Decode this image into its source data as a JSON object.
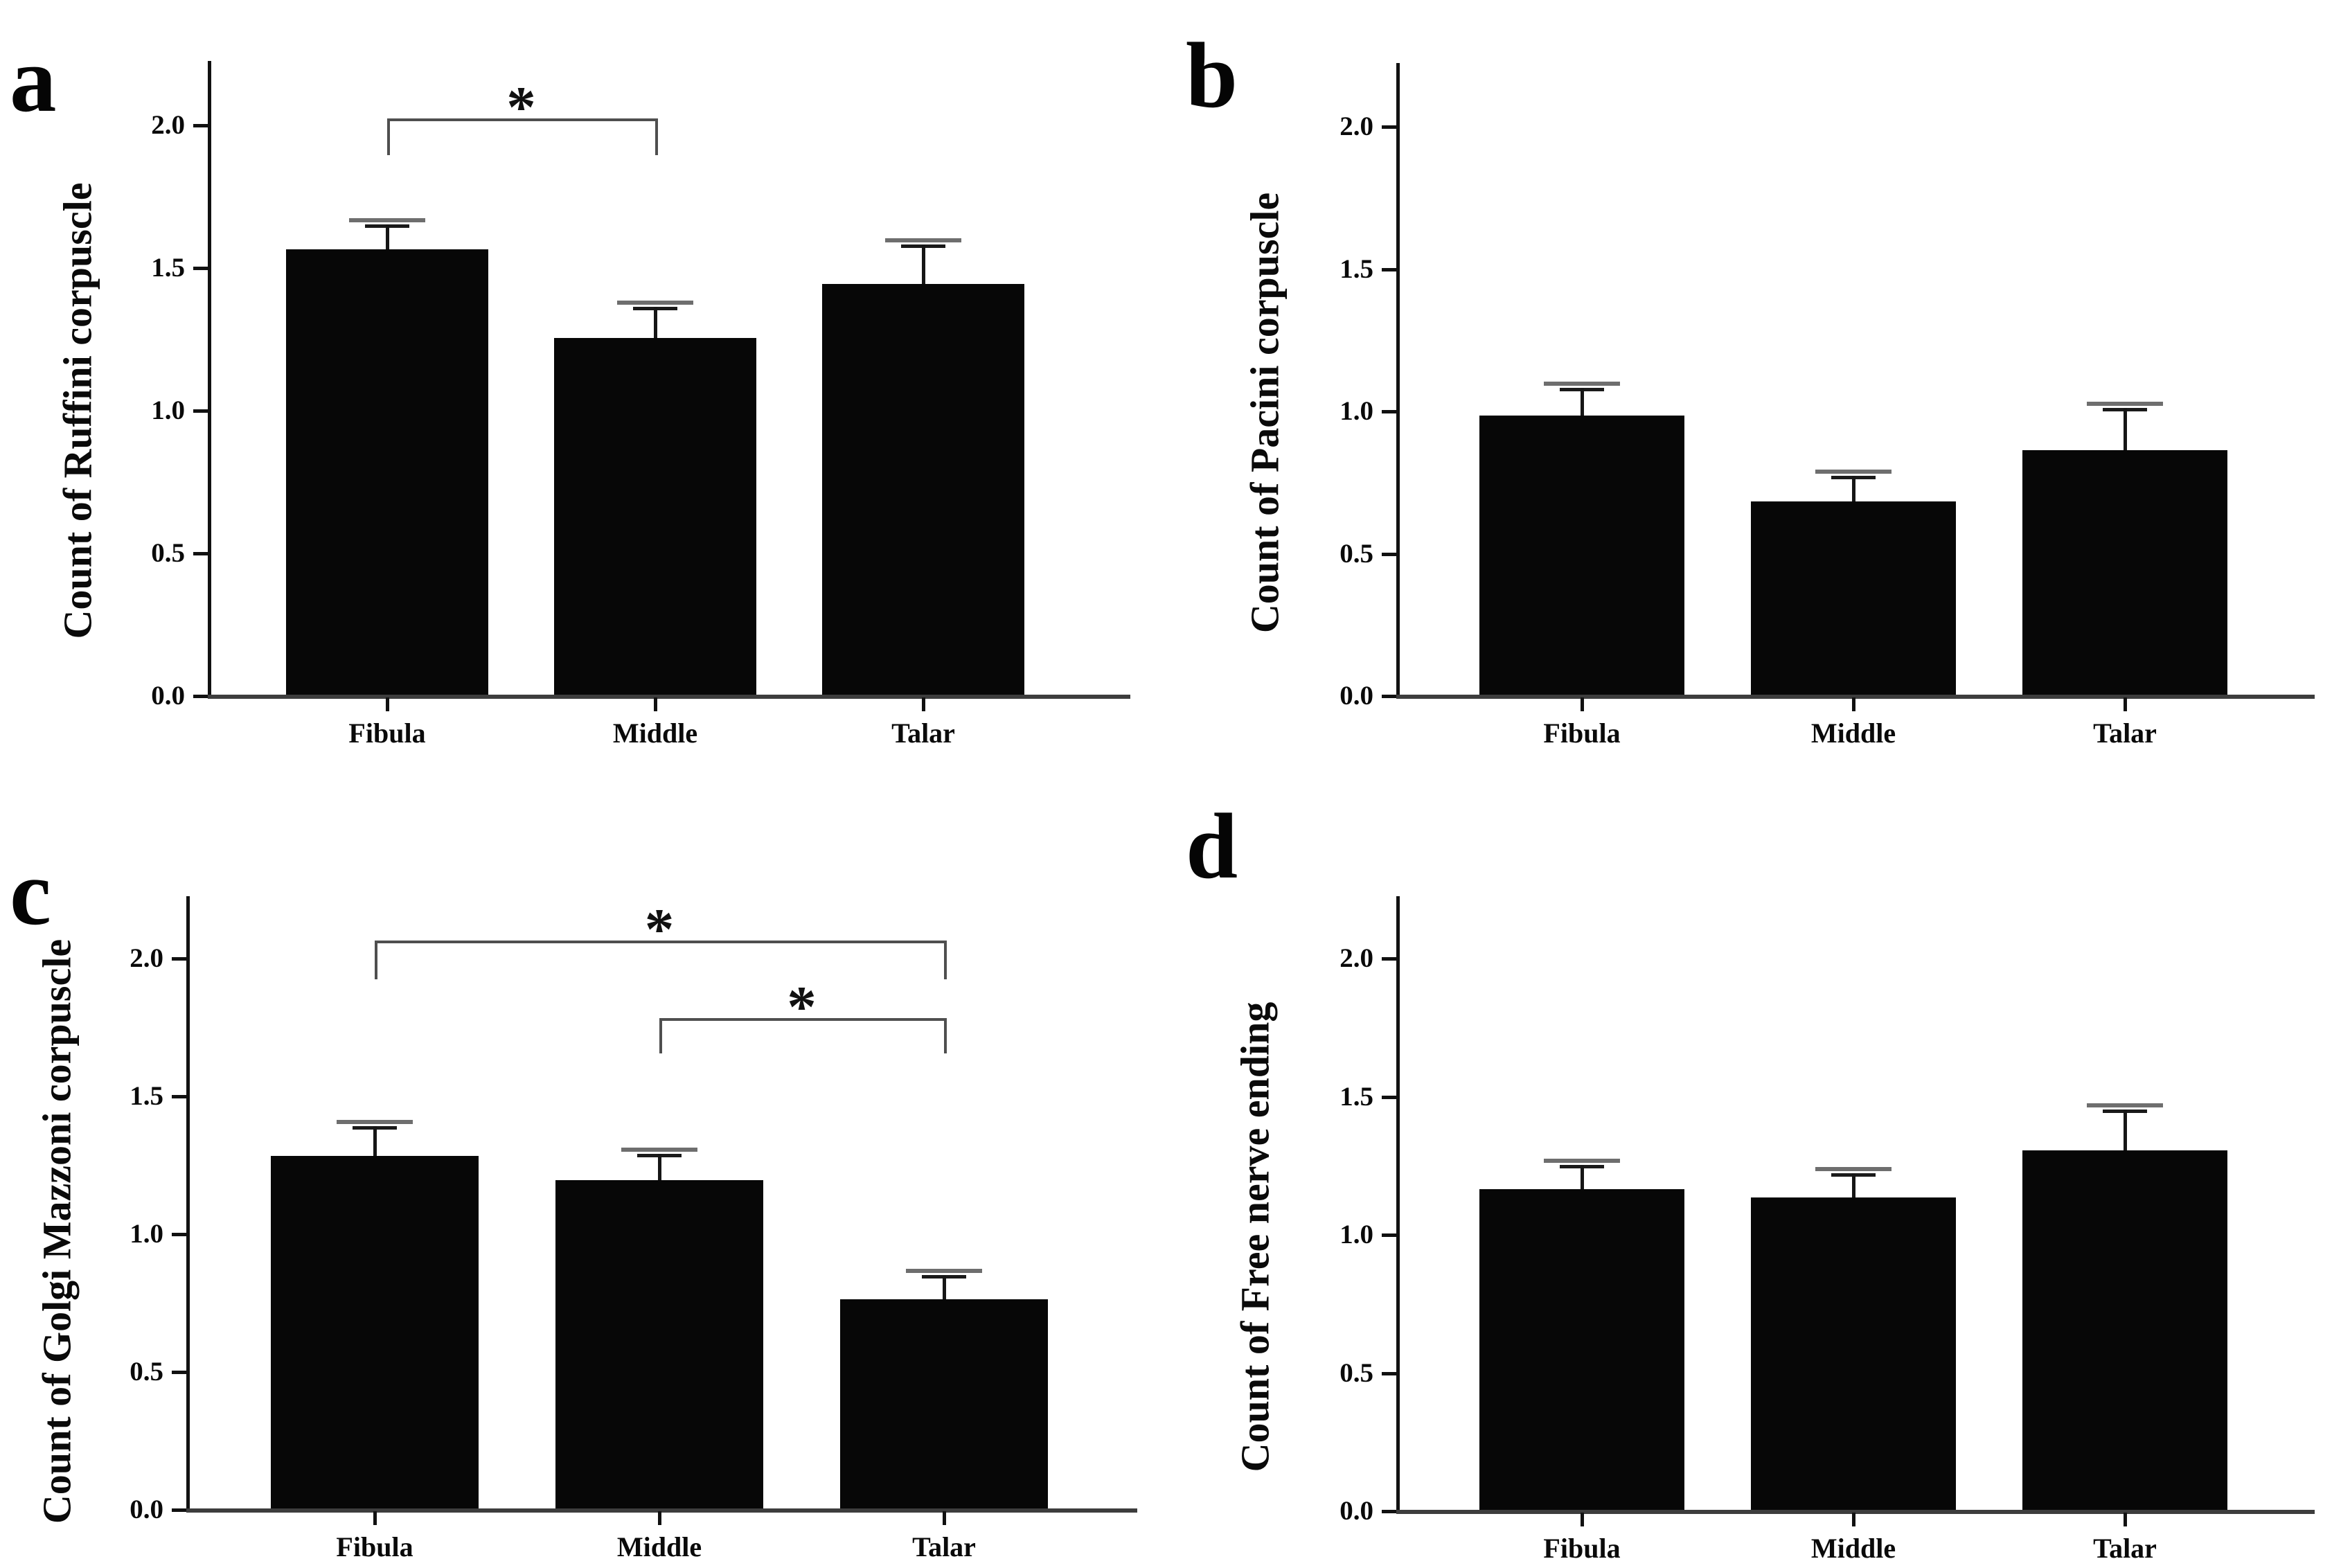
{
  "chart_data": [
    {
      "type": "bar",
      "panel_label": "a",
      "ylabel": "Count of Ruffini corpuscle",
      "xlabel": "",
      "categories": [
        "Fibula",
        "Middle",
        "Talar"
      ],
      "values": [
        1.56,
        1.25,
        1.44
      ],
      "errors_upper": [
        0.11,
        0.13,
        0.16
      ],
      "ylim": [
        0,
        2.22
      ],
      "yticks": [
        "0.0",
        "0.5",
        "1.0",
        "1.5",
        "2.0"
      ],
      "bar_color": "#070707",
      "grid": "off",
      "legend": "none",
      "significance_brackets": [
        {
          "from": "Fibula",
          "to": "Middle",
          "height": 2.02,
          "leg_drop": 0.13,
          "label": "*"
        }
      ]
    },
    {
      "type": "bar",
      "panel_label": "b",
      "ylabel": "Count of Pacini corpuscle",
      "xlabel": "",
      "categories": [
        "Fibula",
        "Middle",
        "Talar"
      ],
      "values": [
        0.98,
        0.68,
        0.86
      ],
      "errors_upper": [
        0.12,
        0.11,
        0.17
      ],
      "ylim": [
        0,
        2.22
      ],
      "yticks": [
        "0.0",
        "0.5",
        "1.0",
        "1.5",
        "2.0"
      ],
      "bar_color": "#070707",
      "grid": "off",
      "legend": "none",
      "significance_brackets": []
    },
    {
      "type": "bar",
      "panel_label": "c",
      "ylabel": "Count of Golgi Mazzoni corpuscle",
      "xlabel": "",
      "categories": [
        "Fibula",
        "Middle",
        "Talar"
      ],
      "values": [
        1.28,
        1.19,
        0.76
      ],
      "errors_upper": [
        0.13,
        0.12,
        0.11
      ],
      "ylim": [
        0,
        2.22
      ],
      "yticks": [
        "0.0",
        "0.5",
        "1.0",
        "1.5",
        "2.0"
      ],
      "bar_color": "#070707",
      "grid": "off",
      "legend": "none",
      "significance_brackets": [
        {
          "from": "Fibula",
          "to": "Talar",
          "height": 2.06,
          "leg_drop": 0.14,
          "label": "*"
        },
        {
          "from": "Middle",
          "to": "Talar",
          "height": 1.78,
          "leg_drop": 0.13,
          "label": "*"
        }
      ]
    },
    {
      "type": "bar",
      "panel_label": "d",
      "ylabel": "Count of Free nerve ending",
      "xlabel": "",
      "categories": [
        "Fibula",
        "Middle",
        "Talar"
      ],
      "values": [
        1.16,
        1.13,
        1.3
      ],
      "errors_upper": [
        0.11,
        0.11,
        0.17
      ],
      "ylim": [
        0,
        2.22
      ],
      "yticks": [
        "0.0",
        "0.5",
        "1.0",
        "1.5",
        "2.0"
      ],
      "bar_color": "#070707",
      "grid": "off",
      "legend": "none",
      "significance_brackets": []
    }
  ]
}
